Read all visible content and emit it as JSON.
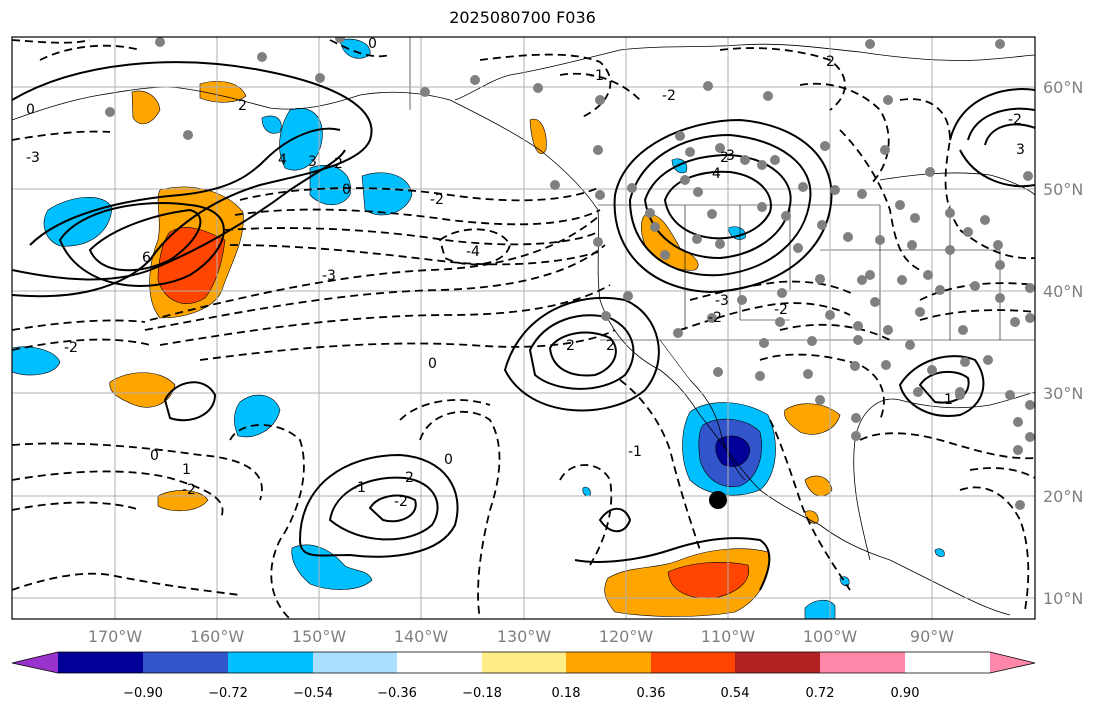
{
  "title": "2025080700 F036",
  "lon_labels": [
    "170°W",
    "160°W",
    "150°W",
    "140°W",
    "130°W",
    "120°W",
    "110°W",
    "100°W",
    "90°W"
  ],
  "lat_labels": [
    "60°N",
    "50°N",
    "40°N",
    "30°N",
    "20°N",
    "10°N"
  ],
  "colorbar": {
    "ticks": [
      "−0.90",
      "−0.72",
      "−0.54",
      "−0.36",
      "−0.18",
      "0.18",
      "0.36",
      "0.54",
      "0.72",
      "0.90"
    ],
    "colors": [
      "#9933cc",
      "#000099",
      "#3355cc",
      "#00bfff",
      "#aadfff",
      "#ffffff",
      "#ffee88",
      "#ffa500",
      "#ff4500",
      "#b22222",
      "#ff88aa"
    ]
  },
  "contour_labels": [
    "0",
    "-3",
    "6",
    "2",
    "4",
    "3",
    "2",
    "-2",
    "-3",
    "-4",
    "0",
    "-2",
    "0",
    "-1",
    "-2",
    "0",
    "2",
    "-2",
    "2",
    "-2",
    "-3",
    "-2",
    "3",
    "4",
    "2",
    "-1",
    "-2",
    "0",
    "1",
    "2",
    "-1",
    "-2",
    "0",
    "1",
    "2",
    "3"
  ]
}
